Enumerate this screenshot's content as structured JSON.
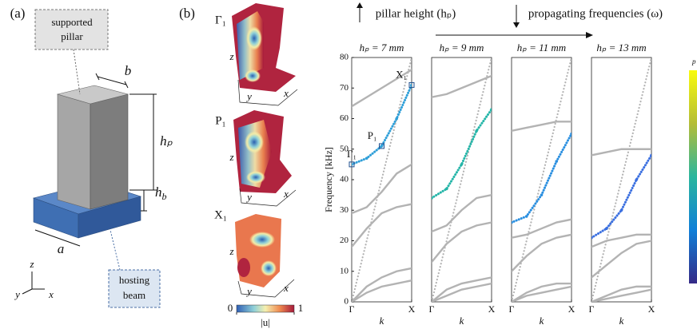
{
  "panel_a": {
    "label": "(a)",
    "pillar_label": [
      "supported",
      "pillar"
    ],
    "beam_label": [
      "hosting",
      "beam"
    ],
    "dim_b": "b",
    "dim_hp": "hₚ",
    "dim_hb": {
      "main": "h",
      "sub": "b"
    },
    "dim_a": "a",
    "axes": {
      "z": "z",
      "y": "y",
      "x": "x"
    }
  },
  "panel_b": {
    "label": "(b)",
    "modes": [
      {
        "label": "Γ₁"
      },
      {
        "label": "P₁"
      },
      {
        "label": "X₁"
      }
    ],
    "mode_axes": {
      "z": "z",
      "y": "y",
      "x": "x"
    },
    "colorbar": {
      "ticks": [
        0,
        1
      ],
      "label": "|u|"
    }
  },
  "header": {
    "left": "pillar height (hₚ)",
    "right": "propagating frequencies (ω)"
  },
  "colorbar_label": "p",
  "chart_data": [
    {
      "type": "line",
      "title": "hₚ = 7 mm",
      "ylabel": "Frequency [kHz]",
      "xlabel": "k",
      "x": [
        0,
        0.25,
        0.5,
        0.75,
        1
      ],
      "xlim": [
        0,
        1
      ],
      "xticks": [
        {
          "value": 0,
          "label": "Γ"
        },
        {
          "value": 1,
          "label": "X"
        }
      ],
      "ylim": [
        0,
        80
      ],
      "yticks": [
        0,
        10,
        20,
        30,
        40,
        50,
        60,
        70,
        80
      ],
      "series": [
        {
          "color": "#b3b3b3",
          "values": [
            0,
            3,
            5,
            6,
            7
          ]
        },
        {
          "color": "#b3b3b3",
          "values": [
            0,
            5,
            8,
            10,
            11
          ]
        },
        {
          "color": "#b3b3b3",
          "values": [
            18,
            24,
            29,
            31,
            32
          ]
        },
        {
          "color": "#b3b3b3",
          "values": [
            29,
            31,
            36,
            42,
            45
          ]
        },
        {
          "color": "#b3b3b3",
          "values": [
            64,
            67,
            70,
            73,
            76
          ]
        },
        {
          "color": "#b3b3b3",
          "values": [
            0,
            20,
            40,
            60,
            80
          ],
          "style": "dotted"
        },
        {
          "color": "#2f9fd8",
          "values": [
            45,
            47,
            51,
            60,
            71
          ],
          "style": "dots"
        }
      ],
      "markers": [
        {
          "label": "Γ₁",
          "x": 0,
          "y": 45
        },
        {
          "label": "P₁",
          "x": 0.5,
          "y": 51
        },
        {
          "label": "X₁",
          "x": 1,
          "y": 71
        }
      ]
    },
    {
      "type": "line",
      "title": "hₚ = 9 mm",
      "xlabel": "k",
      "x": [
        0,
        0.25,
        0.5,
        0.75,
        1
      ],
      "xlim": [
        0,
        1
      ],
      "xticks": [
        {
          "value": 0,
          "label": "Γ"
        },
        {
          "value": 1,
          "label": "X"
        }
      ],
      "ylim": [
        0,
        80
      ],
      "series": [
        {
          "color": "#b3b3b3",
          "values": [
            0,
            2,
            4,
            5,
            6
          ]
        },
        {
          "color": "#b3b3b3",
          "values": [
            0,
            4,
            6,
            7,
            8
          ]
        },
        {
          "color": "#b3b3b3",
          "values": [
            13,
            19,
            23,
            25,
            26
          ]
        },
        {
          "color": "#b3b3b3",
          "values": [
            23,
            25,
            30,
            34,
            35
          ]
        },
        {
          "color": "#b3b3b3",
          "values": [
            67,
            68,
            70,
            72,
            74
          ]
        },
        {
          "color": "#b3b3b3",
          "values": [
            0,
            20,
            40,
            60,
            80
          ],
          "style": "dotted"
        },
        {
          "color": "#25b5a8",
          "values": [
            34,
            37,
            45,
            56,
            63
          ],
          "style": "dots"
        }
      ]
    },
    {
      "type": "line",
      "title": "hₚ = 11 mm",
      "xlabel": "k",
      "x": [
        0,
        0.25,
        0.5,
        0.75,
        1
      ],
      "xlim": [
        0,
        1
      ],
      "xticks": [
        {
          "value": 0,
          "label": "Γ"
        },
        {
          "value": 1,
          "label": "X"
        }
      ],
      "ylim": [
        0,
        80
      ],
      "series": [
        {
          "color": "#b3b3b3",
          "values": [
            0,
            2,
            3,
            4,
            5
          ]
        },
        {
          "color": "#b3b3b3",
          "values": [
            0,
            3,
            5,
            6,
            6
          ]
        },
        {
          "color": "#b3b3b3",
          "values": [
            10,
            15,
            19,
            21,
            22
          ]
        },
        {
          "color": "#b3b3b3",
          "values": [
            21,
            22,
            24,
            26,
            27
          ]
        },
        {
          "color": "#b3b3b3",
          "values": [
            56,
            57,
            58,
            59,
            59
          ]
        },
        {
          "color": "#b3b3b3",
          "values": [
            0,
            20,
            40,
            60,
            80
          ],
          "style": "dotted"
        },
        {
          "color": "#2a8fe0",
          "values": [
            26,
            28,
            35,
            46,
            55
          ],
          "style": "dots"
        }
      ]
    },
    {
      "type": "line",
      "title": "hₚ = 13 mm",
      "xlabel": "k",
      "x": [
        0,
        0.25,
        0.5,
        0.75,
        1
      ],
      "xlim": [
        0,
        1
      ],
      "xticks": [
        {
          "value": 0,
          "label": "Γ"
        },
        {
          "value": 1,
          "label": "X"
        }
      ],
      "ylim": [
        0,
        80
      ],
      "series": [
        {
          "color": "#b3b3b3",
          "values": [
            0,
            1,
            2,
            3,
            4
          ]
        },
        {
          "color": "#b3b3b3",
          "values": [
            0,
            2,
            4,
            5,
            5
          ]
        },
        {
          "color": "#b3b3b3",
          "values": [
            8,
            12,
            16,
            19,
            20
          ]
        },
        {
          "color": "#b3b3b3",
          "values": [
            18,
            20,
            21,
            22,
            22
          ]
        },
        {
          "color": "#b3b3b3",
          "values": [
            48,
            49,
            50,
            50,
            50
          ]
        },
        {
          "color": "#b3b3b3",
          "values": [
            0,
            20,
            40,
            60,
            80
          ],
          "style": "dotted"
        },
        {
          "color": "#3a6fe0",
          "values": [
            21,
            24,
            30,
            40,
            48
          ],
          "style": "dots"
        }
      ]
    }
  ]
}
